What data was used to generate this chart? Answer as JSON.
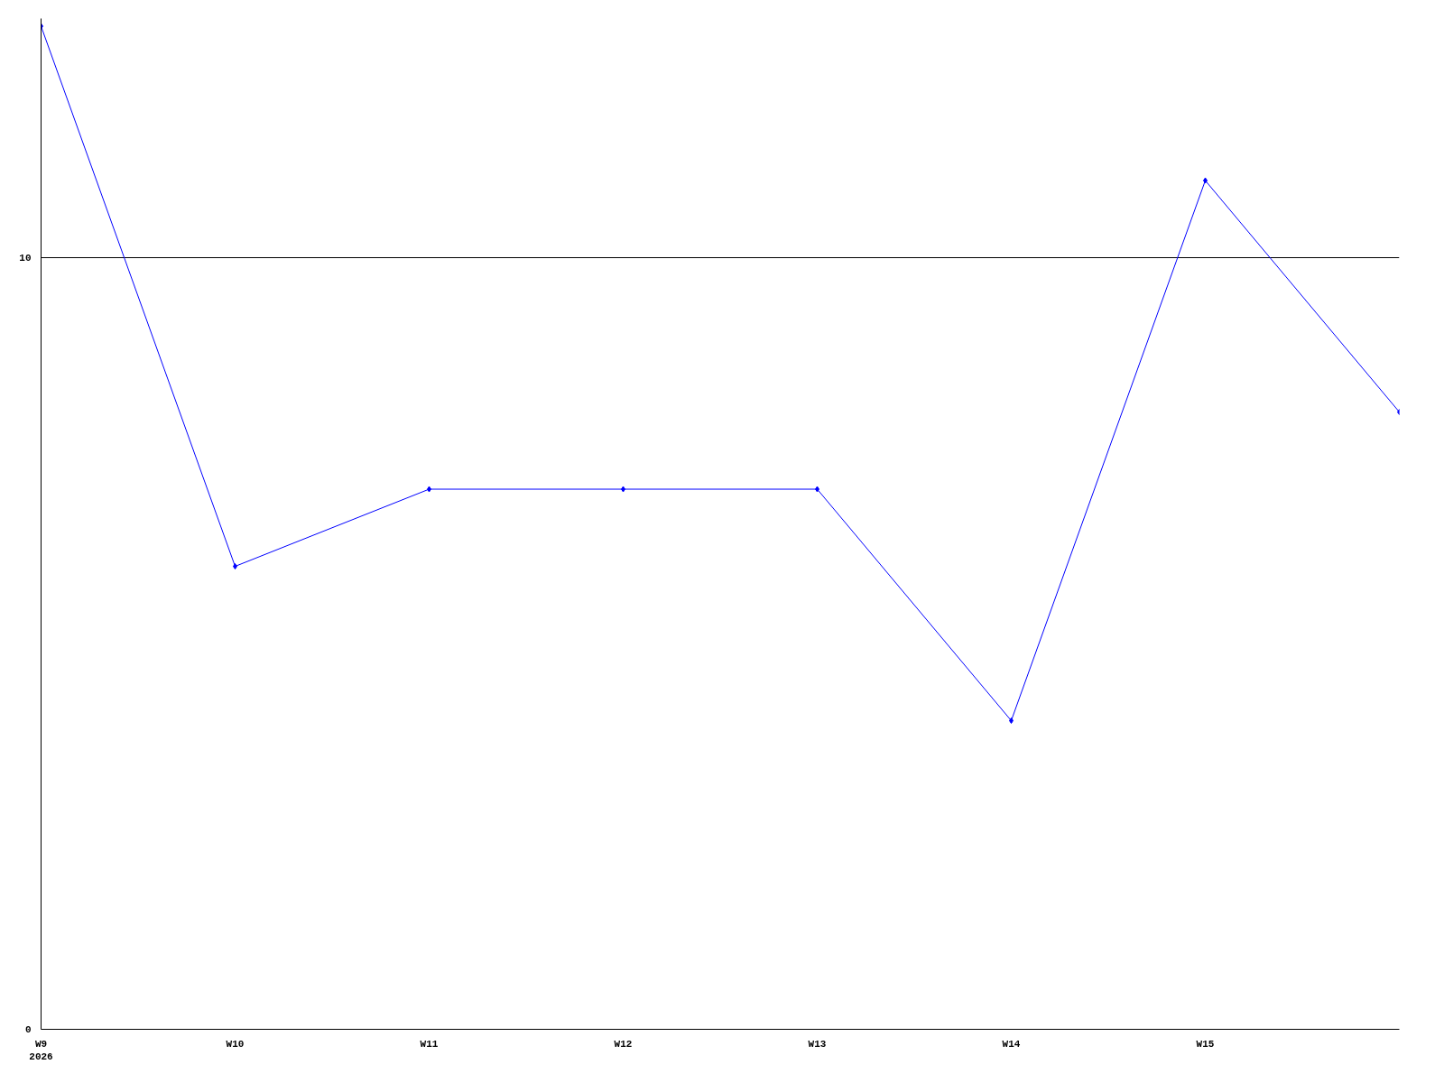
{
  "chart_data": {
    "type": "line",
    "categories": [
      "W9\n2026",
      "W10",
      "W11",
      "W12",
      "W13",
      "W14",
      "W15",
      null
    ],
    "series": [
      {
        "color": "#0000ff",
        "values": [
          13,
          6,
          7,
          7,
          7,
          4,
          11,
          8
        ]
      }
    ],
    "ylim": [
      0,
      13.1
    ],
    "yticks": [
      0,
      10
    ],
    "grid": "y",
    "marker": "diamond",
    "line_style": "solid"
  }
}
